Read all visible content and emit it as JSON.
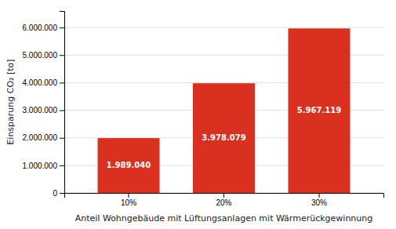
{
  "chart_data": {
    "type": "bar",
    "xlabel": "Anteil Wohngebäude mit Lüftungsanlagen mit Wärmerückgewinnung",
    "ylabel": "Einsparung CO₂ [to]",
    "categories": [
      "10%",
      "20%",
      "30%"
    ],
    "values": [
      1989040,
      3978079,
      5967119
    ],
    "value_labels": [
      "1.989.040",
      "3.978.079",
      "5.967.119"
    ],
    "data_labels": true,
    "color": "#d93020",
    "ylim": [
      0,
      6600000
    ],
    "yticks": [
      0,
      {
        "value": 1000000,
        "label": "1.000.000"
      },
      {
        "value": 2000000,
        "label": "2.000.000"
      },
      {
        "value": 3000000,
        "label": "3.000.000"
      },
      {
        "value": 4000000,
        "label": "4.000.000"
      },
      {
        "value": 5000000,
        "label": "5.000.000"
      },
      {
        "value": 6000000,
        "label": "6.000.000"
      }
    ],
    "grid": true
  }
}
